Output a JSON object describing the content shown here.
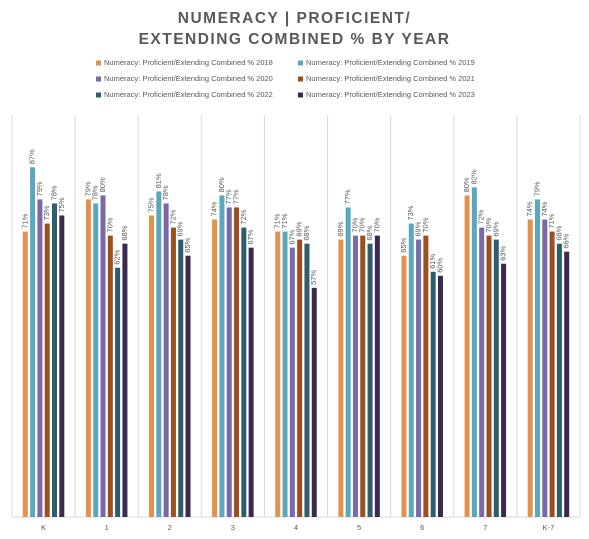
{
  "chart_data": {
    "type": "bar",
    "title": "NUMERACY | PROFICIENT/ EXTENDING COMBINED % BY YEAR",
    "categories": [
      "K",
      "1",
      "2",
      "3",
      "4",
      "5",
      "6",
      "7",
      "K-7"
    ],
    "ylim": [
      0,
      100
    ],
    "series": [
      {
        "name": "Numeracy: Proficient/Extending Combined % 2018",
        "color": "#e3914f",
        "values": [
          71,
          79,
          75,
          74,
          71,
          69,
          65,
          80,
          74
        ],
        "value_labels": [
          "71%",
          "79%",
          "75%",
          "74%",
          "71%",
          "69%",
          "65%",
          "80%",
          "74%"
        ]
      },
      {
        "name": "Numeracy: Proficient/Extending Combined % 2019",
        "color": "#5ba7be",
        "values": [
          87,
          78,
          81,
          80,
          71,
          77,
          73,
          82,
          79
        ],
        "value_labels": [
          "87%",
          "78%",
          "81%",
          "80%",
          "71%",
          "77%",
          "73%",
          "82%",
          "79%"
        ]
      },
      {
        "name": "Numeracy: Proficient/Extending Combined % 2020",
        "color": "#7b68a8",
        "values": [
          79,
          80,
          78,
          77,
          67,
          70,
          69,
          72,
          74
        ],
        "value_labels": [
          "79%",
          "80%",
          "78%",
          "77%",
          "67%",
          "70%",
          "69%",
          "72%",
          "74%"
        ]
      },
      {
        "name": "Numeracy: Proficient/Extending Combined % 2021",
        "color": "#9c4f1f",
        "values": [
          73,
          70,
          72,
          77,
          69,
          70,
          70,
          70,
          71
        ],
        "value_labels": [
          "73%",
          "70%",
          "72%",
          "77%",
          "69%",
          "70%",
          "70%",
          "70%",
          "71%"
        ]
      },
      {
        "name": "Numeracy: Proficient/Extending Combined % 2022",
        "color": "#2e5e6e",
        "values": [
          78,
          62,
          69,
          72,
          68,
          68,
          61,
          69,
          68
        ],
        "value_labels": [
          "78%",
          "62%",
          "69%",
          "72%",
          "68%",
          "68%",
          "61%",
          "69%",
          "68%"
        ]
      },
      {
        "name": "Numeracy: Proficient/Extending Combined % 2023",
        "color": "#3a2a4e",
        "values": [
          75,
          68,
          65,
          67,
          57,
          70,
          60,
          63,
          66
        ],
        "value_labels": [
          "75%",
          "68%",
          "65%",
          "67%",
          "57%",
          "70%",
          "60%",
          "63%",
          "66%"
        ]
      }
    ]
  }
}
